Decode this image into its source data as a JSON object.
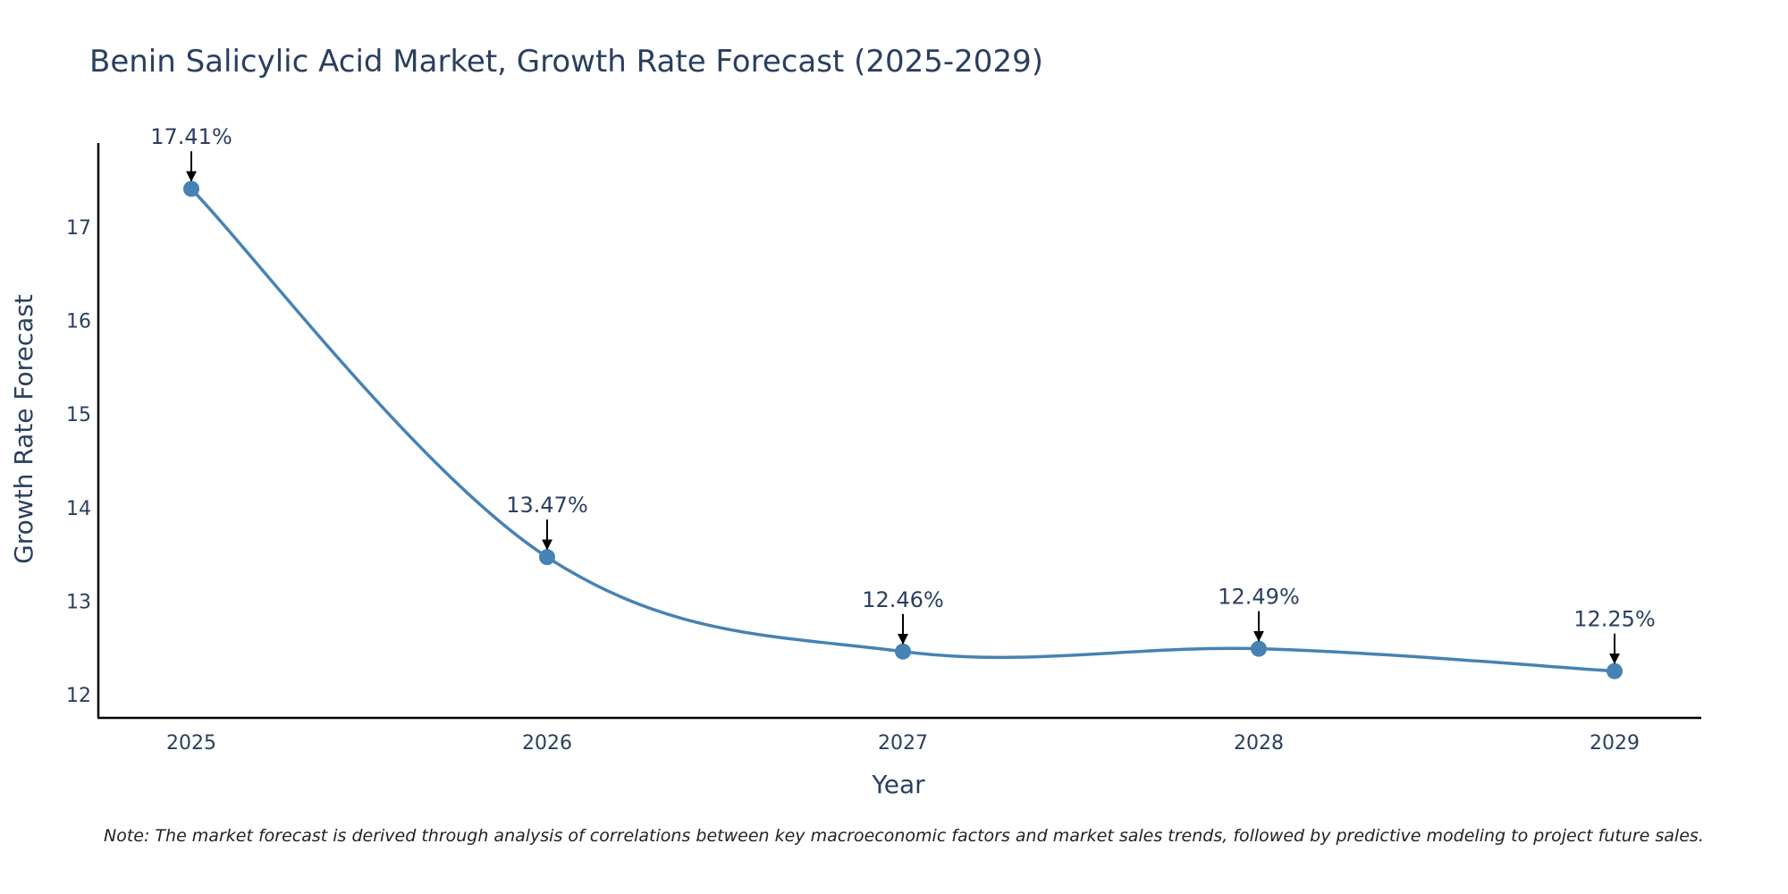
{
  "chart_data": {
    "type": "line",
    "title": "Benin Salicylic Acid Market, Growth Rate Forecast (2025-2029)",
    "xlabel": "Year",
    "ylabel": "Growth Rate Forecast",
    "categories": [
      "2025",
      "2026",
      "2027",
      "2028",
      "2029"
    ],
    "series": [
      {
        "name": "Growth Rate Forecast",
        "values": [
          17.41,
          13.47,
          12.46,
          12.49,
          12.25
        ],
        "labels": [
          "17.41%",
          "13.47%",
          "12.46%",
          "12.49%",
          "12.25%"
        ],
        "color": "#4682b4"
      }
    ],
    "yticks": [
      "12",
      "13",
      "14",
      "15",
      "16",
      "17"
    ],
    "ylim": [
      11.75,
      17.9
    ],
    "grid": false,
    "note": "Note: The market forecast is derived through analysis of correlations between key macroeconomic factors and market sales trends, followed by predictive modeling to project future sales."
  }
}
